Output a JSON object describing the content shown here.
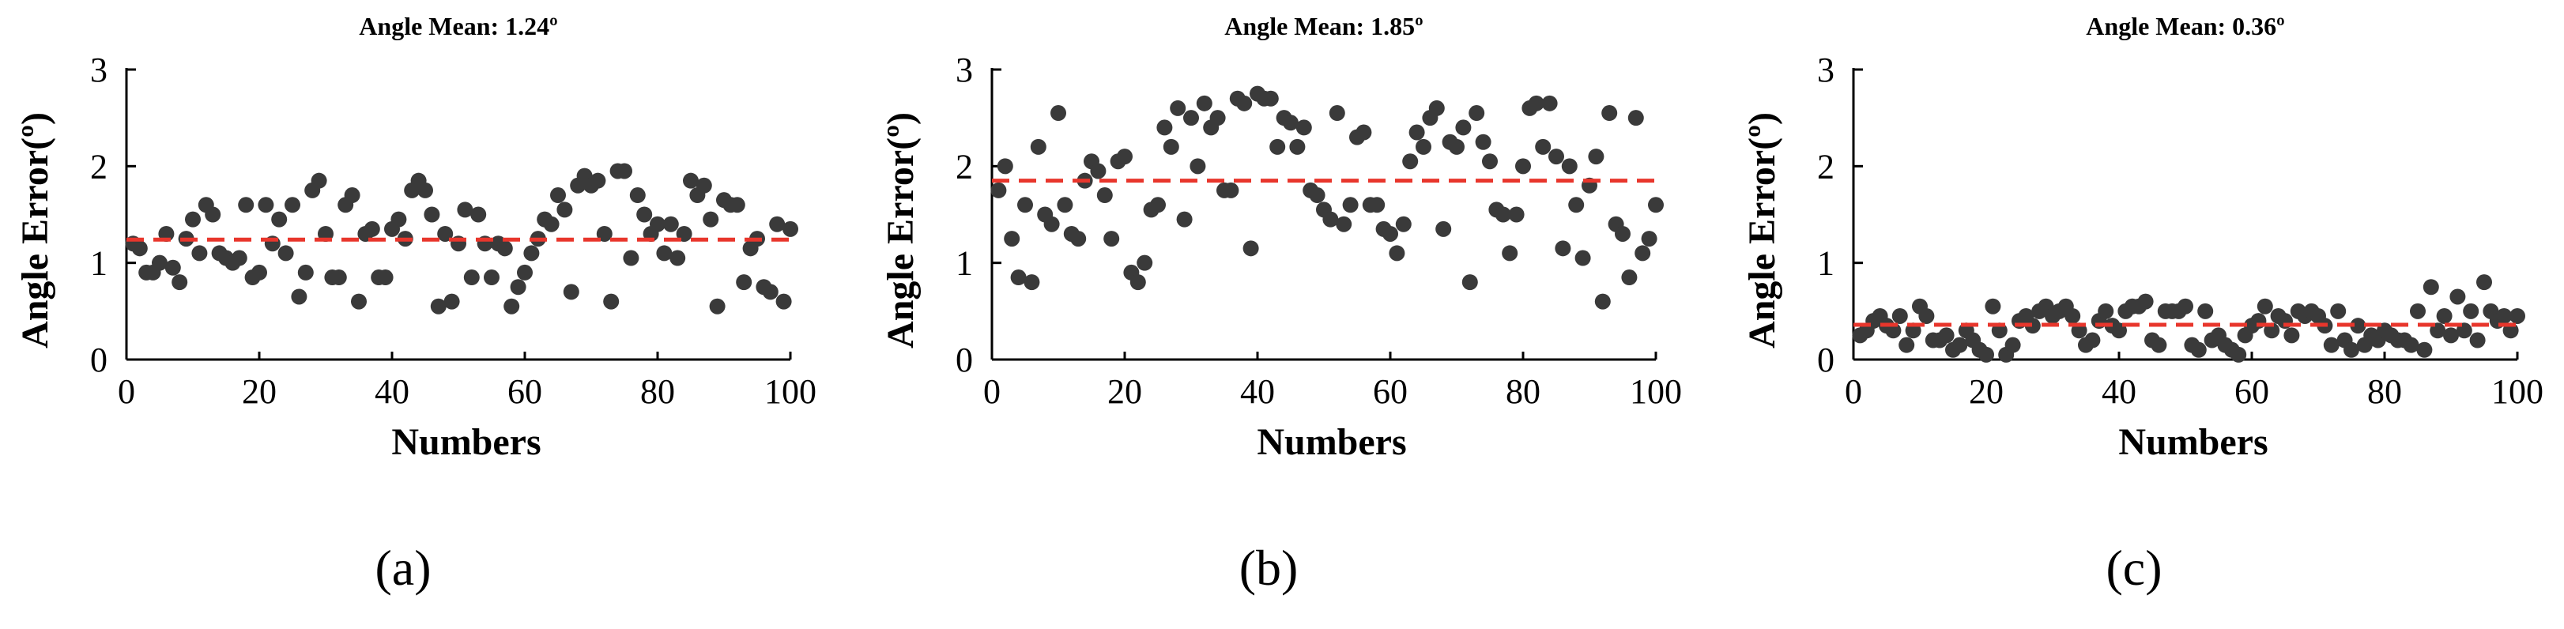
{
  "chart_data": [
    {
      "type": "scatter",
      "title": "Angle Mean: 1.24º",
      "xlabel": "Numbers",
      "ylabel": "Angle Error(º)",
      "xlim": [
        0,
        100
      ],
      "ylim": [
        0,
        3
      ],
      "xticks": [
        "0",
        "20",
        "40",
        "60",
        "80",
        "100"
      ],
      "yticks": [
        "0",
        "1",
        "2",
        "3"
      ],
      "mean": 1.24,
      "mean_color": "#e8362c",
      "point_color": "#3a3a3a",
      "caption": "(a)",
      "x": [
        1,
        2,
        3,
        4,
        5,
        6,
        7,
        8,
        9,
        10,
        11,
        12,
        13,
        14,
        15,
        16,
        17,
        18,
        19,
        20,
        21,
        22,
        23,
        24,
        25,
        26,
        27,
        28,
        29,
        30,
        31,
        32,
        33,
        34,
        35,
        36,
        37,
        38,
        39,
        40,
        41,
        42,
        43,
        44,
        45,
        46,
        47,
        48,
        49,
        50,
        51,
        52,
        53,
        54,
        55,
        56,
        57,
        58,
        59,
        60,
        61,
        62,
        63,
        64,
        65,
        66,
        67,
        68,
        69,
        70,
        71,
        72,
        73,
        74,
        75,
        76,
        77,
        78,
        79,
        80,
        81,
        82,
        83,
        84,
        85,
        86,
        87,
        88,
        89,
        90,
        91,
        92,
        93,
        94,
        95,
        96,
        97,
        98,
        99,
        100
      ],
      "y": [
        1.2,
        1.15,
        0.9,
        0.9,
        1.0,
        1.3,
        0.95,
        0.8,
        1.25,
        1.45,
        1.1,
        1.6,
        1.5,
        1.1,
        1.05,
        1.0,
        1.05,
        1.6,
        0.85,
        0.9,
        1.6,
        1.2,
        1.45,
        1.1,
        1.6,
        0.65,
        0.9,
        1.75,
        1.85,
        1.3,
        0.85,
        0.85,
        1.6,
        1.7,
        0.6,
        1.3,
        1.35,
        0.85,
        0.85,
        1.35,
        1.45,
        1.25,
        1.75,
        1.85,
        1.75,
        1.5,
        0.55,
        1.3,
        0.6,
        1.2,
        1.55,
        0.85,
        1.5,
        1.2,
        0.85,
        1.2,
        1.15,
        0.55,
        0.75,
        0.9,
        1.1,
        1.25,
        1.45,
        1.4,
        1.7,
        1.55,
        0.7,
        1.8,
        1.9,
        1.8,
        1.85,
        1.3,
        0.6,
        1.95,
        1.95,
        1.05,
        1.7,
        1.5,
        1.3,
        1.4,
        1.1,
        1.4,
        1.05,
        1.3,
        1.85,
        1.7,
        1.8,
        1.45,
        0.55,
        1.65,
        1.6,
        1.6,
        0.8,
        1.15,
        1.25,
        0.75,
        0.7,
        1.4,
        0.6,
        1.35
      ]
    },
    {
      "type": "scatter",
      "title": "Angle Mean: 1.85º",
      "xlabel": "Numbers",
      "ylabel": "Angle Error(º)",
      "xlim": [
        0,
        100
      ],
      "ylim": [
        0,
        3
      ],
      "xticks": [
        "0",
        "20",
        "40",
        "60",
        "80",
        "100"
      ],
      "yticks": [
        "0",
        "1",
        "2",
        "3"
      ],
      "mean": 1.85,
      "mean_color": "#e8362c",
      "point_color": "#3a3a3a",
      "caption": "(b)",
      "x": [
        1,
        2,
        3,
        4,
        5,
        6,
        7,
        8,
        9,
        10,
        11,
        12,
        13,
        14,
        15,
        16,
        17,
        18,
        19,
        20,
        21,
        22,
        23,
        24,
        25,
        26,
        27,
        28,
        29,
        30,
        31,
        32,
        33,
        34,
        35,
        36,
        37,
        38,
        39,
        40,
        41,
        42,
        43,
        44,
        45,
        46,
        47,
        48,
        49,
        50,
        51,
        52,
        53,
        54,
        55,
        56,
        57,
        58,
        59,
        60,
        61,
        62,
        63,
        64,
        65,
        66,
        67,
        68,
        69,
        70,
        71,
        72,
        73,
        74,
        75,
        76,
        77,
        78,
        79,
        80,
        81,
        82,
        83,
        84,
        85,
        86,
        87,
        88,
        89,
        90,
        91,
        92,
        93,
        94,
        95,
        96,
        97,
        98,
        99,
        100
      ],
      "y": [
        1.75,
        2.0,
        1.25,
        0.85,
        1.6,
        0.8,
        2.2,
        1.5,
        1.4,
        2.55,
        1.6,
        1.3,
        1.25,
        1.85,
        2.05,
        1.95,
        1.7,
        1.25,
        2.05,
        2.1,
        0.9,
        0.8,
        1.0,
        1.55,
        1.6,
        2.4,
        2.2,
        2.6,
        1.45,
        2.5,
        2.0,
        2.65,
        2.4,
        2.5,
        1.75,
        1.75,
        2.7,
        2.65,
        1.15,
        2.75,
        2.7,
        2.7,
        2.2,
        2.5,
        2.45,
        2.2,
        2.4,
        1.75,
        1.7,
        1.55,
        1.45,
        2.55,
        1.4,
        1.6,
        2.3,
        2.35,
        1.6,
        1.6,
        1.35,
        1.3,
        1.1,
        1.4,
        2.05,
        2.35,
        2.2,
        2.5,
        2.6,
        1.35,
        2.25,
        2.2,
        2.4,
        0.8,
        2.55,
        2.25,
        2.05,
        1.55,
        1.5,
        1.1,
        1.5,
        2.0,
        2.6,
        2.65,
        2.2,
        2.65,
        2.1,
        1.15,
        2.0,
        1.6,
        1.05,
        1.8,
        2.1,
        0.6,
        2.55,
        1.4,
        1.3,
        0.85,
        2.5,
        1.1,
        1.25,
        1.6
      ]
    },
    {
      "type": "scatter",
      "title": "Angle Mean: 0.36º",
      "xlabel": "Numbers",
      "ylabel": "Angle Error(º)",
      "xlim": [
        0,
        100
      ],
      "ylim": [
        0,
        3
      ],
      "xticks": [
        "0",
        "20",
        "40",
        "60",
        "80",
        "100"
      ],
      "yticks": [
        "0",
        "1",
        "2",
        "3"
      ],
      "mean": 0.36,
      "mean_color": "#e8362c",
      "point_color": "#3a3a3a",
      "caption": "(c)",
      "x": [
        1,
        2,
        3,
        4,
        5,
        6,
        7,
        8,
        9,
        10,
        11,
        12,
        13,
        14,
        15,
        16,
        17,
        18,
        19,
        20,
        21,
        22,
        23,
        24,
        25,
        26,
        27,
        28,
        29,
        30,
        31,
        32,
        33,
        34,
        35,
        36,
        37,
        38,
        39,
        40,
        41,
        42,
        43,
        44,
        45,
        46,
        47,
        48,
        49,
        50,
        51,
        52,
        53,
        54,
        55,
        56,
        57,
        58,
        59,
        60,
        61,
        62,
        63,
        64,
        65,
        66,
        67,
        68,
        69,
        70,
        71,
        72,
        73,
        74,
        75,
        76,
        77,
        78,
        79,
        80,
        81,
        82,
        83,
        84,
        85,
        86,
        87,
        88,
        89,
        90,
        91,
        92,
        93,
        94,
        95,
        96,
        97,
        98,
        99,
        100
      ],
      "y": [
        0.25,
        0.3,
        0.4,
        0.45,
        0.35,
        0.3,
        0.45,
        0.15,
        0.3,
        0.55,
        0.45,
        0.2,
        0.2,
        0.25,
        0.1,
        0.15,
        0.3,
        0.2,
        0.1,
        0.05,
        0.55,
        0.3,
        0.05,
        0.15,
        0.4,
        0.45,
        0.35,
        0.5,
        0.55,
        0.45,
        0.5,
        0.55,
        0.45,
        0.3,
        0.15,
        0.2,
        0.4,
        0.5,
        0.35,
        0.3,
        0.5,
        0.55,
        0.55,
        0.6,
        0.2,
        0.15,
        0.5,
        0.5,
        0.5,
        0.55,
        0.15,
        0.1,
        0.5,
        0.2,
        0.25,
        0.15,
        0.1,
        0.05,
        0.25,
        0.35,
        0.4,
        0.55,
        0.3,
        0.45,
        0.4,
        0.25,
        0.5,
        0.45,
        0.5,
        0.45,
        0.35,
        0.15,
        0.5,
        0.2,
        0.1,
        0.35,
        0.15,
        0.25,
        0.2,
        0.3,
        0.25,
        0.2,
        0.2,
        0.15,
        0.5,
        0.1,
        0.75,
        0.3,
        0.45,
        0.25,
        0.65,
        0.3,
        0.5,
        0.2,
        0.8,
        0.5,
        0.4,
        0.45,
        0.3,
        0.45
      ]
    }
  ]
}
